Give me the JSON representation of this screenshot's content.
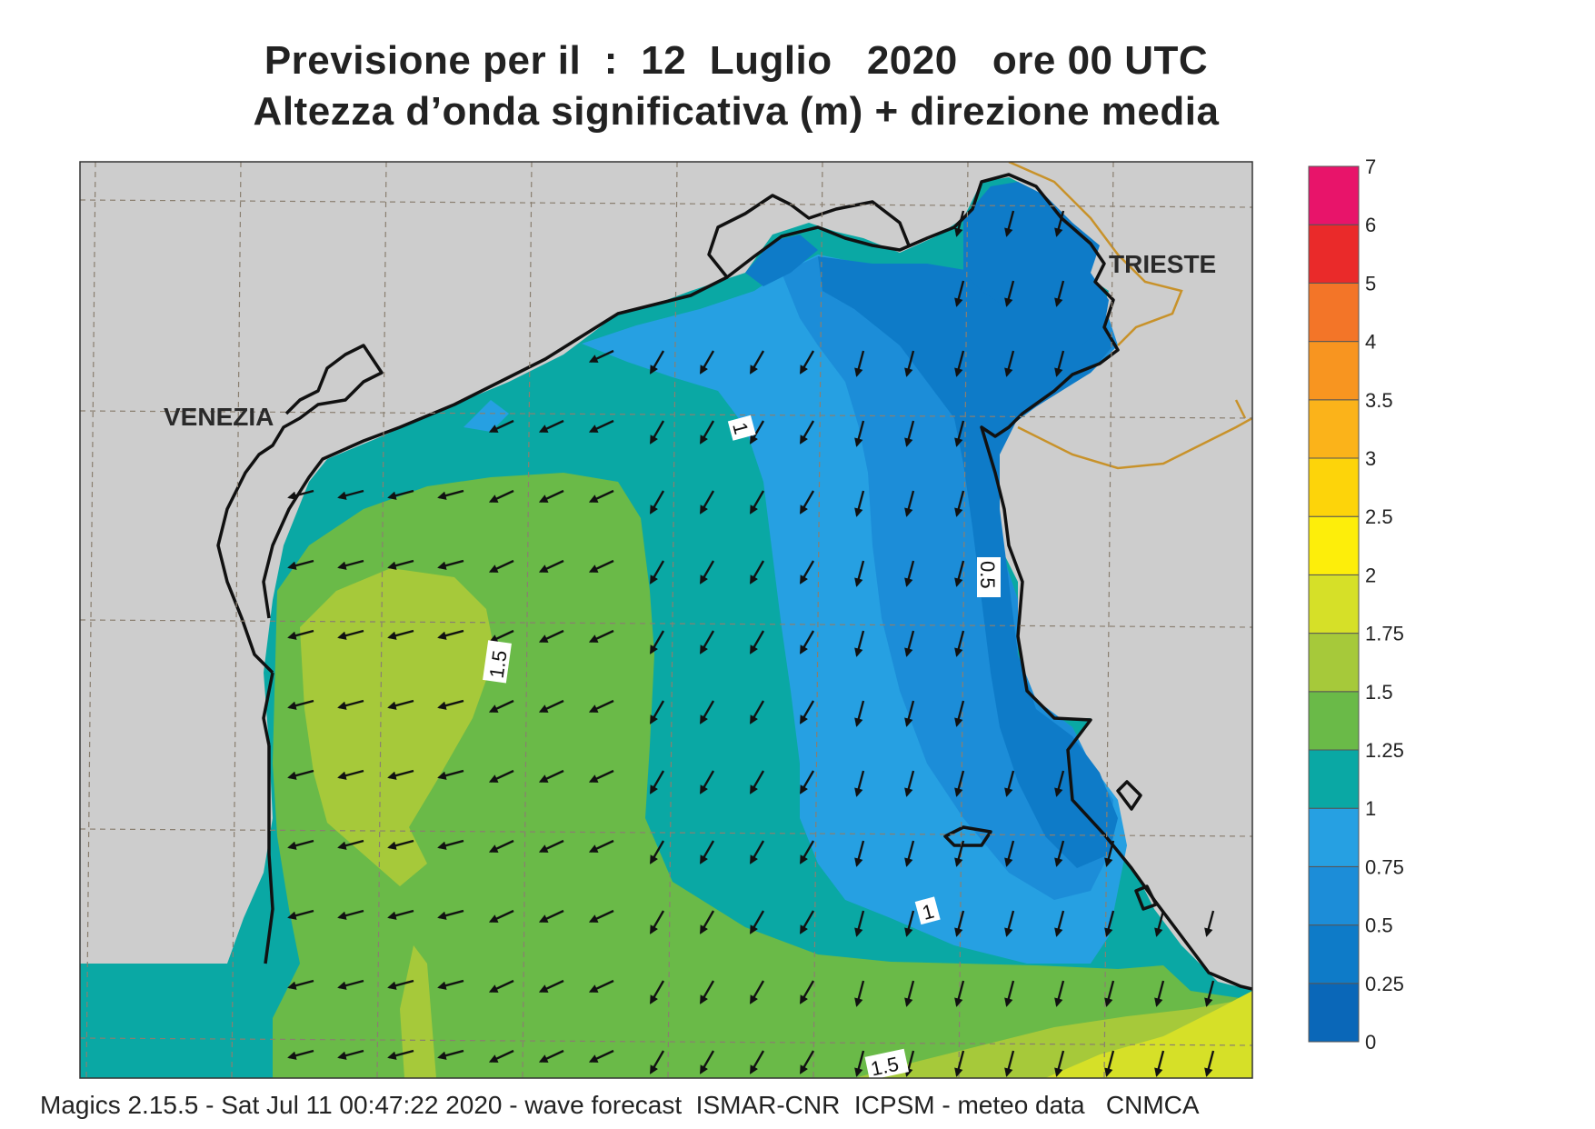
{
  "header": {
    "title_line1": "Previsione per il  :  12  Luglio   2020   ore 00 UTC",
    "title_line2": "Altezza d’onda significativa (m) + direzione media"
  },
  "map_labels": {
    "venezia": "VENEZIA",
    "trieste": "TRIESTE",
    "contour_1a": "1",
    "contour_1b": "1",
    "contour_05": "0.5",
    "contour_15a": "1.5",
    "contour_15b": "1.5"
  },
  "legend": {
    "ticks": [
      "0",
      "0.25",
      "0.5",
      "0.75",
      "1",
      "1.25",
      "1.5",
      "1.75",
      "2",
      "2.5",
      "3",
      "3.5",
      "4",
      "5",
      "6",
      "7"
    ],
    "colors": [
      "#0a67b8",
      "#0e7bc8",
      "#1c8dd8",
      "#26a0e2",
      "#0aa8a4",
      "#6aba48",
      "#a6c93a",
      "#d6e028",
      "#fdee0a",
      "#fdd40a",
      "#fbb31a",
      "#f89520",
      "#f37528",
      "#ea2a2a",
      "#e8146a"
    ]
  },
  "footer": {
    "credit": "Magics 2.15.5 - Sat Jul 11 00:47:22 2020 - wave forecast  ISMAR-CNR  ICPSM - meteo data   CNMCA"
  }
}
